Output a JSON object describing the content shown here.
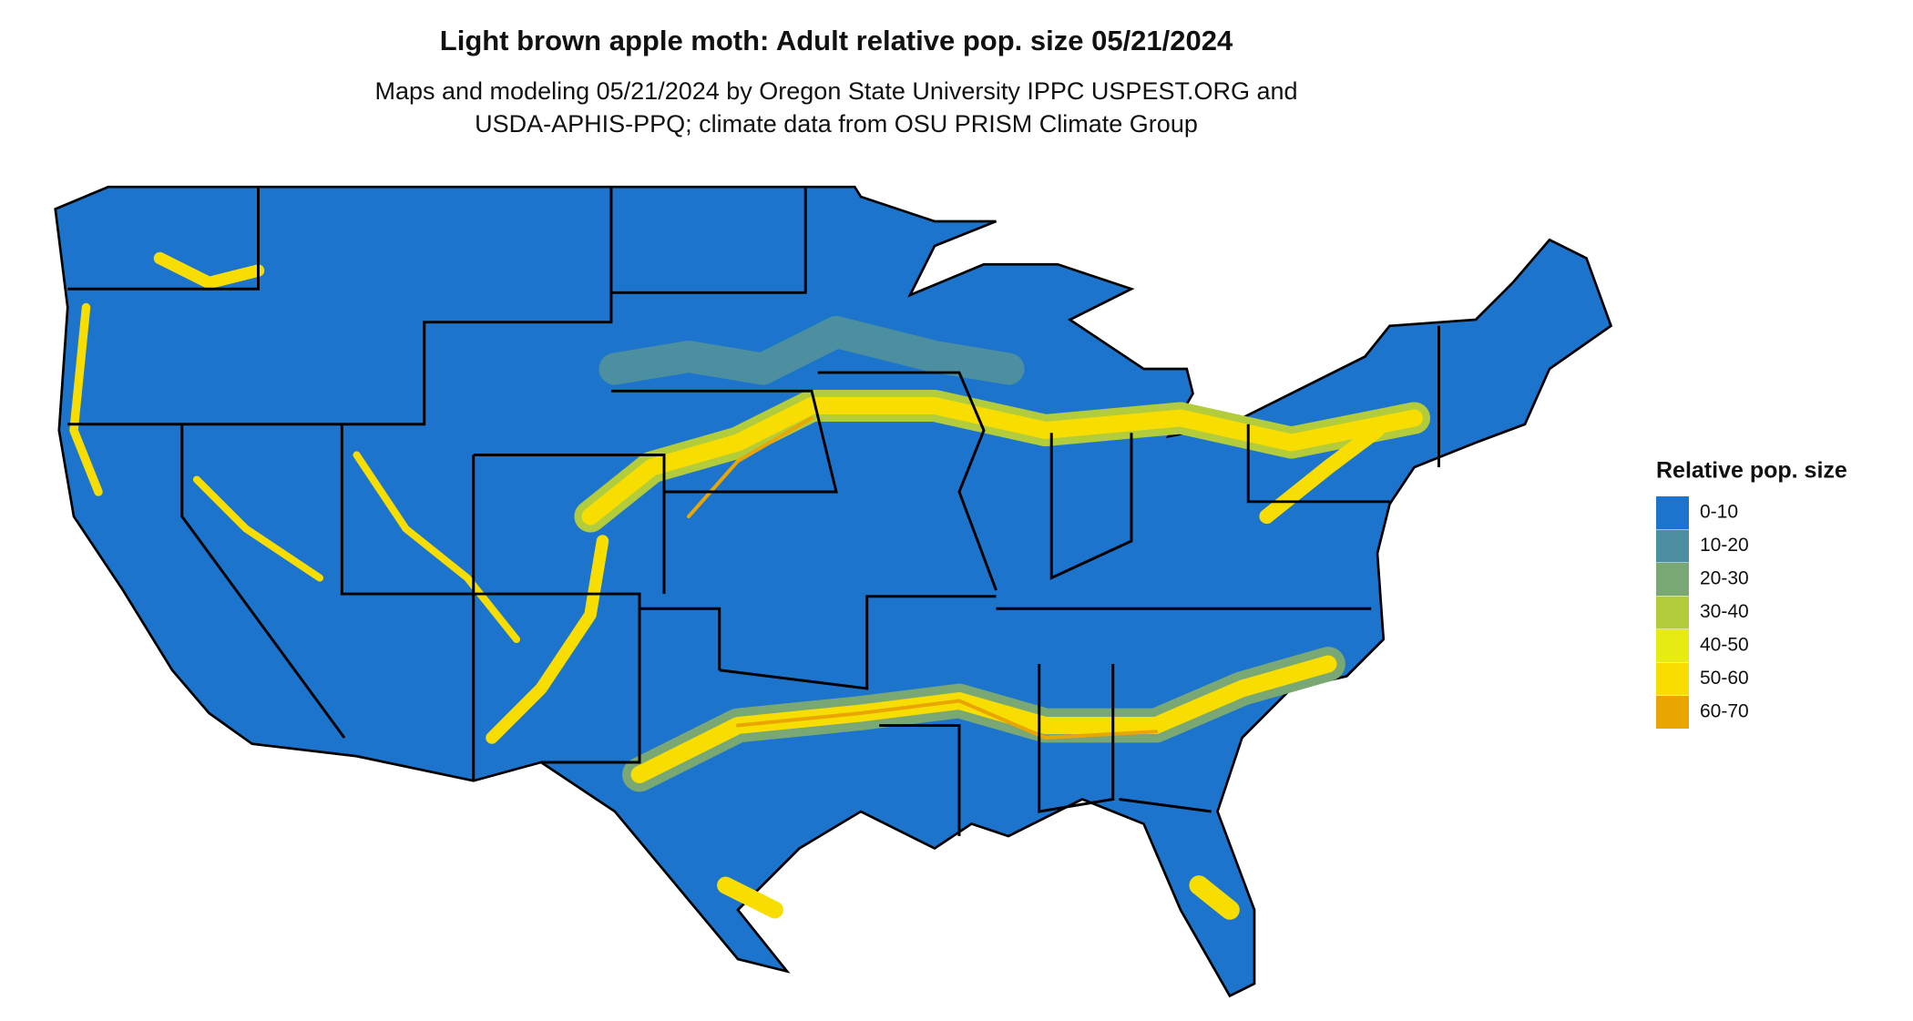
{
  "header": {
    "title": "Light brown apple moth: Adult relative pop. size 05/21/2024",
    "subtitle_lines": [
      "Maps and modeling 05/21/2024 by Oregon State University IPPC USPEST.ORG and",
      "USDA-APHIS-PPQ; climate data from OSU PRISM Climate Group"
    ]
  },
  "legend": {
    "title": "Relative pop. size",
    "items": [
      {
        "label": "0-10",
        "color": "#1c74cc"
      },
      {
        "label": "10-20",
        "color": "#4b8fa0"
      },
      {
        "label": "20-30",
        "color": "#7aa874"
      },
      {
        "label": "30-40",
        "color": "#b2cc3c"
      },
      {
        "label": "40-50",
        "color": "#e6ec12"
      },
      {
        "label": "50-60",
        "color": "#f7de00"
      },
      {
        "label": "60-70",
        "color": "#eaa600"
      }
    ]
  }
}
